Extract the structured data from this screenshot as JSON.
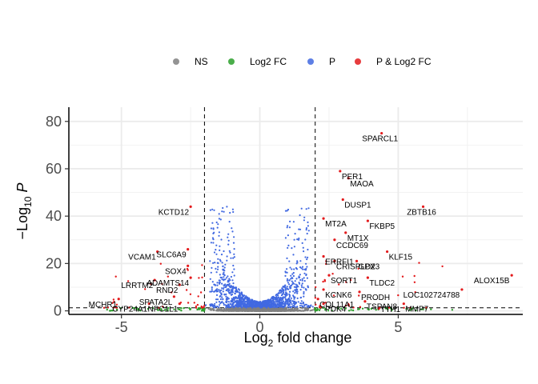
{
  "chart_data": {
    "type": "scatter",
    "title": "",
    "xlabel": "Log2 fold change",
    "ylabel": "-Log10 P",
    "xlim": [
      -6.9,
      9.5
    ],
    "ylim": [
      -1.5,
      86
    ],
    "x_ticks": [
      -5,
      0,
      5
    ],
    "y_ticks": [
      0,
      20,
      40,
      60,
      80
    ],
    "grid": true,
    "legend_position": "top",
    "thresholds": {
      "fold_change": [
        -2,
        2
      ],
      "p_value_log10": 1.3
    },
    "series": [
      {
        "name": "NS",
        "color": "#808080"
      },
      {
        "name": "Log2 FC",
        "color": "#2ca02c"
      },
      {
        "name": "P",
        "color": "#4169e1"
      },
      {
        "name": "P & Log2 FC",
        "color": "#e31a1c"
      }
    ],
    "labeled_points": [
      {
        "gene": "SPARCL1",
        "x": 4.4,
        "y": 75
      },
      {
        "gene": "PER1",
        "x": 2.9,
        "y": 59
      },
      {
        "gene": "MAOA",
        "x": 3.2,
        "y": 56
      },
      {
        "gene": "DUSP1",
        "x": 3.0,
        "y": 47
      },
      {
        "gene": "ZBTB16",
        "x": 5.9,
        "y": 44
      },
      {
        "gene": "KCTD12",
        "x": -2.5,
        "y": 44
      },
      {
        "gene": "FKBP5",
        "x": 3.9,
        "y": 38
      },
      {
        "gene": "MT2A",
        "x": 2.3,
        "y": 39
      },
      {
        "gene": "MT1X",
        "x": 3.1,
        "y": 33
      },
      {
        "gene": "CCDC69",
        "x": 2.7,
        "y": 30
      },
      {
        "gene": "SLC6A9",
        "x": -2.6,
        "y": 26
      },
      {
        "gene": "VCAM1",
        "x": -3.7,
        "y": 25
      },
      {
        "gene": "KLF15",
        "x": 4.6,
        "y": 25
      },
      {
        "gene": "ERRFI1",
        "x": 2.3,
        "y": 23
      },
      {
        "gene": "CRISPLD2",
        "x": 2.7,
        "y": 21
      },
      {
        "gene": "GPX3",
        "x": 3.5,
        "y": 21
      },
      {
        "gene": "SOX4",
        "x": -2.6,
        "y": 19
      },
      {
        "gene": "ALOX15B",
        "x": 9.1,
        "y": 15
      },
      {
        "gene": "SORT1",
        "x": 2.5,
        "y": 15
      },
      {
        "gene": "TLDC2",
        "x": 3.9,
        "y": 14
      },
      {
        "gene": "ADAMTS14",
        "x": -2.5,
        "y": 14
      },
      {
        "gene": "LRRTM2",
        "x": -3.8,
        "y": 13
      },
      {
        "gene": "RND2",
        "x": -2.9,
        "y": 11
      },
      {
        "gene": "KCNK6",
        "x": 2.3,
        "y": 9
      },
      {
        "gene": "PRODH",
        "x": 3.6,
        "y": 8
      },
      {
        "gene": "LOC102724788",
        "x": 7.3,
        "y": 9
      },
      {
        "gene": "SPATA2L",
        "x": -3.1,
        "y": 6
      },
      {
        "gene": "COL11A1",
        "x": 2.1,
        "y": 5
      },
      {
        "gene": "MCHR1",
        "x": -5.1,
        "y": 5
      },
      {
        "gene": "TSPAN8",
        "x": 3.8,
        "y": 4
      },
      {
        "gene": "CYP24A1",
        "x": -4.0,
        "y": 3
      },
      {
        "gene": "NPC1L1",
        "x": -2.9,
        "y": 3
      },
      {
        "gene": "PDK4",
        "x": 2.3,
        "y": 3
      },
      {
        "gene": "MMP7",
        "x": 5.2,
        "y": 3
      },
      {
        "gene": "TTH1",
        "x": 4.3,
        "y": 1
      }
    ]
  }
}
